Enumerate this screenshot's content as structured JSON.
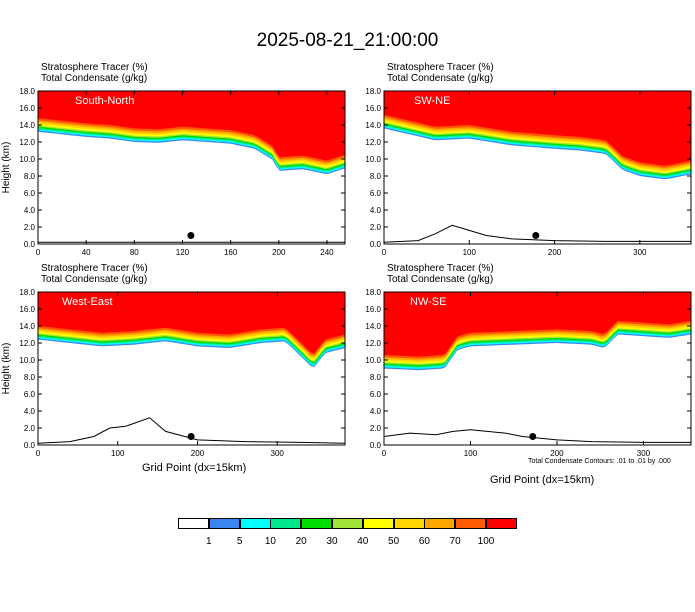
{
  "title": "2025-08-21_21:00:00",
  "x_axis_label": "Grid Point (dx=15km)",
  "contour_note": "Total Condensate Contours: .01 to .01 by .000",
  "legend": {
    "colors": [
      "#ffffff",
      "#3a87f0",
      "#00ffff",
      "#00e68a",
      "#00dd00",
      "#a2e33a",
      "#ffff00",
      "#ffd400",
      "#ffa500",
      "#ff5a00",
      "#ff0000"
    ],
    "labels": [
      "1",
      "5",
      "10",
      "20",
      "30",
      "40",
      "50",
      "60",
      "70",
      "100"
    ]
  },
  "chart_data": [
    {
      "type": "heatmap",
      "panel": "South-North",
      "header_line1": "Stratosphere Tracer   (%)",
      "header_line2": "Total Condensate   (g/kg)",
      "ylabel": "Height (km)",
      "xlabel": "",
      "ylim": [
        0,
        18
      ],
      "xlim": [
        0,
        255
      ],
      "xticks": [
        "0",
        "40",
        "80",
        "120",
        "160",
        "200",
        "240"
      ],
      "yticks": [
        "0.0",
        "2.0",
        "4.0",
        "6.0",
        "8.0",
        "10.0",
        "12.0",
        "14.0",
        "16.0",
        "18.0"
      ],
      "tracer_base_height_km": {
        "x": [
          0,
          20,
          40,
          60,
          80,
          100,
          120,
          140,
          160,
          180,
          195,
          200,
          220,
          240,
          255
        ],
        "y": [
          14.8,
          14.5,
          14.2,
          14.0,
          13.6,
          13.5,
          13.8,
          13.6,
          13.4,
          12.8,
          11.5,
          10.2,
          10.4,
          9.8,
          10.5
        ]
      },
      "terrain_height_km": {
        "x": [
          0,
          50,
          100,
          150,
          200,
          255
        ],
        "y": [
          0.2,
          0.2,
          0.2,
          0.2,
          0.2,
          0.2
        ]
      },
      "marker": {
        "x": 127,
        "y": 1.0
      }
    },
    {
      "type": "heatmap",
      "panel": "SW-NE",
      "header_line1": "Stratosphere Tracer   (%)",
      "header_line2": "Total Condensate   (g/kg)",
      "ylabel": "",
      "xlabel": "",
      "ylim": [
        0,
        18
      ],
      "xlim": [
        0,
        360
      ],
      "xticks": [
        "0",
        "100",
        "200",
        "300"
      ],
      "yticks": [
        "0.0",
        "2.0",
        "4.0",
        "6.0",
        "8.0",
        "10.0",
        "12.0",
        "14.0",
        "16.0",
        "18.0"
      ],
      "tracer_base_height_km": {
        "x": [
          0,
          30,
          60,
          100,
          150,
          200,
          230,
          260,
          280,
          300,
          330,
          360
        ],
        "y": [
          15.2,
          14.5,
          13.8,
          14.0,
          13.2,
          12.8,
          12.6,
          12.2,
          10.3,
          9.6,
          9.2,
          9.8
        ]
      },
      "terrain_height_km": {
        "x": [
          0,
          40,
          60,
          80,
          100,
          120,
          150,
          200,
          260,
          300,
          360
        ],
        "y": [
          0.2,
          0.4,
          1.2,
          2.2,
          1.6,
          1.0,
          0.6,
          0.4,
          0.3,
          0.3,
          0.3
        ]
      },
      "marker": {
        "x": 178,
        "y": 1.0
      }
    },
    {
      "type": "heatmap",
      "panel": "West-East",
      "header_line1": "Stratosphere Tracer   (%)",
      "header_line2": "Total Condensate   (g/kg)",
      "ylabel": "Height (km)",
      "xlabel": "Grid Point (dx=15km)",
      "ylim": [
        0,
        18
      ],
      "xlim": [
        0,
        385
      ],
      "xticks": [
        "0",
        "100",
        "200",
        "300"
      ],
      "yticks": [
        "0.0",
        "2.0",
        "4.0",
        "6.0",
        "8.0",
        "10.0",
        "12.0",
        "14.0",
        "16.0",
        "18.0"
      ],
      "tracer_base_height_km": {
        "x": [
          0,
          40,
          80,
          120,
          160,
          200,
          240,
          280,
          310,
          330,
          345,
          360,
          385
        ],
        "y": [
          14.0,
          13.6,
          13.2,
          13.4,
          13.8,
          13.2,
          13.0,
          13.6,
          13.8,
          12.0,
          10.6,
          12.4,
          13.0
        ]
      },
      "terrain_height_km": {
        "x": [
          0,
          40,
          70,
          90,
          110,
          140,
          160,
          200,
          260,
          330,
          385
        ],
        "y": [
          0.2,
          0.4,
          1.0,
          2.0,
          2.2,
          3.2,
          1.6,
          0.6,
          0.4,
          0.3,
          0.2
        ]
      },
      "marker": {
        "x": 192,
        "y": 1.0
      }
    },
    {
      "type": "heatmap",
      "panel": "NW-SE",
      "header_line1": "Stratosphere Tracer   (%)",
      "header_line2": "Total Condensate   (g/kg)",
      "ylabel": "",
      "xlabel": "Grid Point (dx=15km)",
      "ylim": [
        0,
        18
      ],
      "xlim": [
        0,
        355
      ],
      "xticks": [
        "0",
        "100",
        "200",
        "300"
      ],
      "yticks": [
        "0.0",
        "2.0",
        "4.0",
        "6.0",
        "8.0",
        "10.0",
        "12.0",
        "14.0",
        "16.0",
        "18.0"
      ],
      "tracer_base_height_km": {
        "x": [
          0,
          40,
          70,
          85,
          100,
          150,
          200,
          240,
          255,
          270,
          300,
          330,
          355
        ],
        "y": [
          10.6,
          10.4,
          10.6,
          12.8,
          13.2,
          13.4,
          13.6,
          13.4,
          13.0,
          14.6,
          14.4,
          14.2,
          14.6
        ]
      },
      "terrain_height_km": {
        "x": [
          0,
          30,
          60,
          80,
          100,
          140,
          160,
          200,
          240,
          300,
          355
        ],
        "y": [
          1.0,
          1.4,
          1.2,
          1.6,
          1.8,
          1.4,
          1.0,
          0.6,
          0.4,
          0.3,
          0.3
        ]
      },
      "marker": {
        "x": 172,
        "y": 1.0
      }
    }
  ]
}
